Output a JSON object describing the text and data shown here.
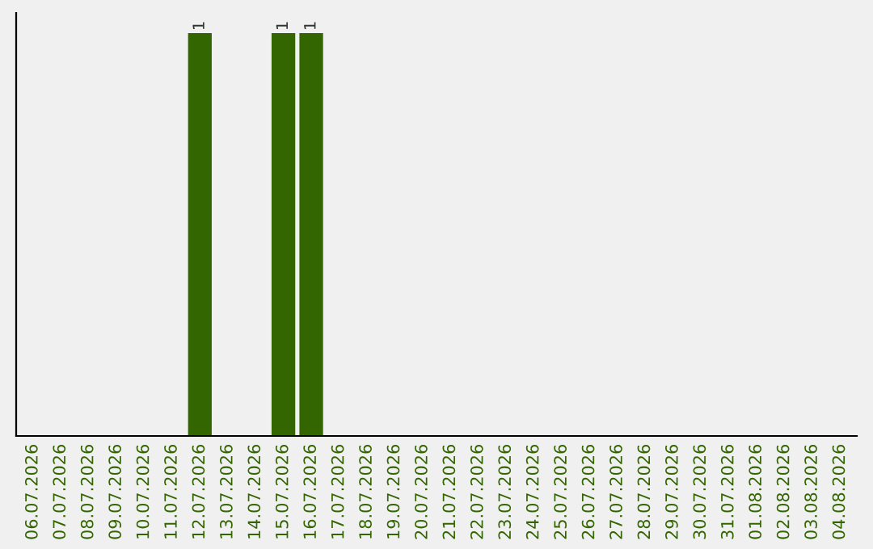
{
  "chart_data": {
    "type": "bar",
    "categories": [
      "06.07.2026",
      "07.07.2026",
      "08.07.2026",
      "09.07.2026",
      "10.07.2026",
      "11.07.2026",
      "12.07.2026",
      "13.07.2026",
      "14.07.2026",
      "15.07.2026",
      "16.07.2026",
      "17.07.2026",
      "18.07.2026",
      "19.07.2026",
      "20.07.2026",
      "21.07.2026",
      "22.07.2026",
      "23.07.2026",
      "24.07.2026",
      "25.07.2026",
      "26.07.2026",
      "27.07.2026",
      "28.07.2026",
      "29.07.2026",
      "30.07.2026",
      "31.07.2026",
      "01.08.2026",
      "02.08.2026",
      "03.08.2026",
      "04.08.2026"
    ],
    "values": [
      0,
      0,
      0,
      0,
      0,
      0,
      1,
      0,
      0,
      1,
      1,
      0,
      0,
      0,
      0,
      0,
      0,
      0,
      0,
      0,
      0,
      0,
      0,
      0,
      0,
      0,
      0,
      0,
      0,
      0
    ],
    "value_labels": [
      null,
      null,
      null,
      null,
      null,
      null,
      "1",
      null,
      null,
      "1",
      "1",
      null,
      null,
      null,
      null,
      null,
      null,
      null,
      null,
      null,
      null,
      null,
      null,
      null,
      null,
      null,
      null,
      null,
      null,
      null
    ],
    "color": "#336600",
    "ylim": [
      0,
      1.05
    ],
    "tick_labels": "x",
    "grid": false,
    "legend": false
  }
}
